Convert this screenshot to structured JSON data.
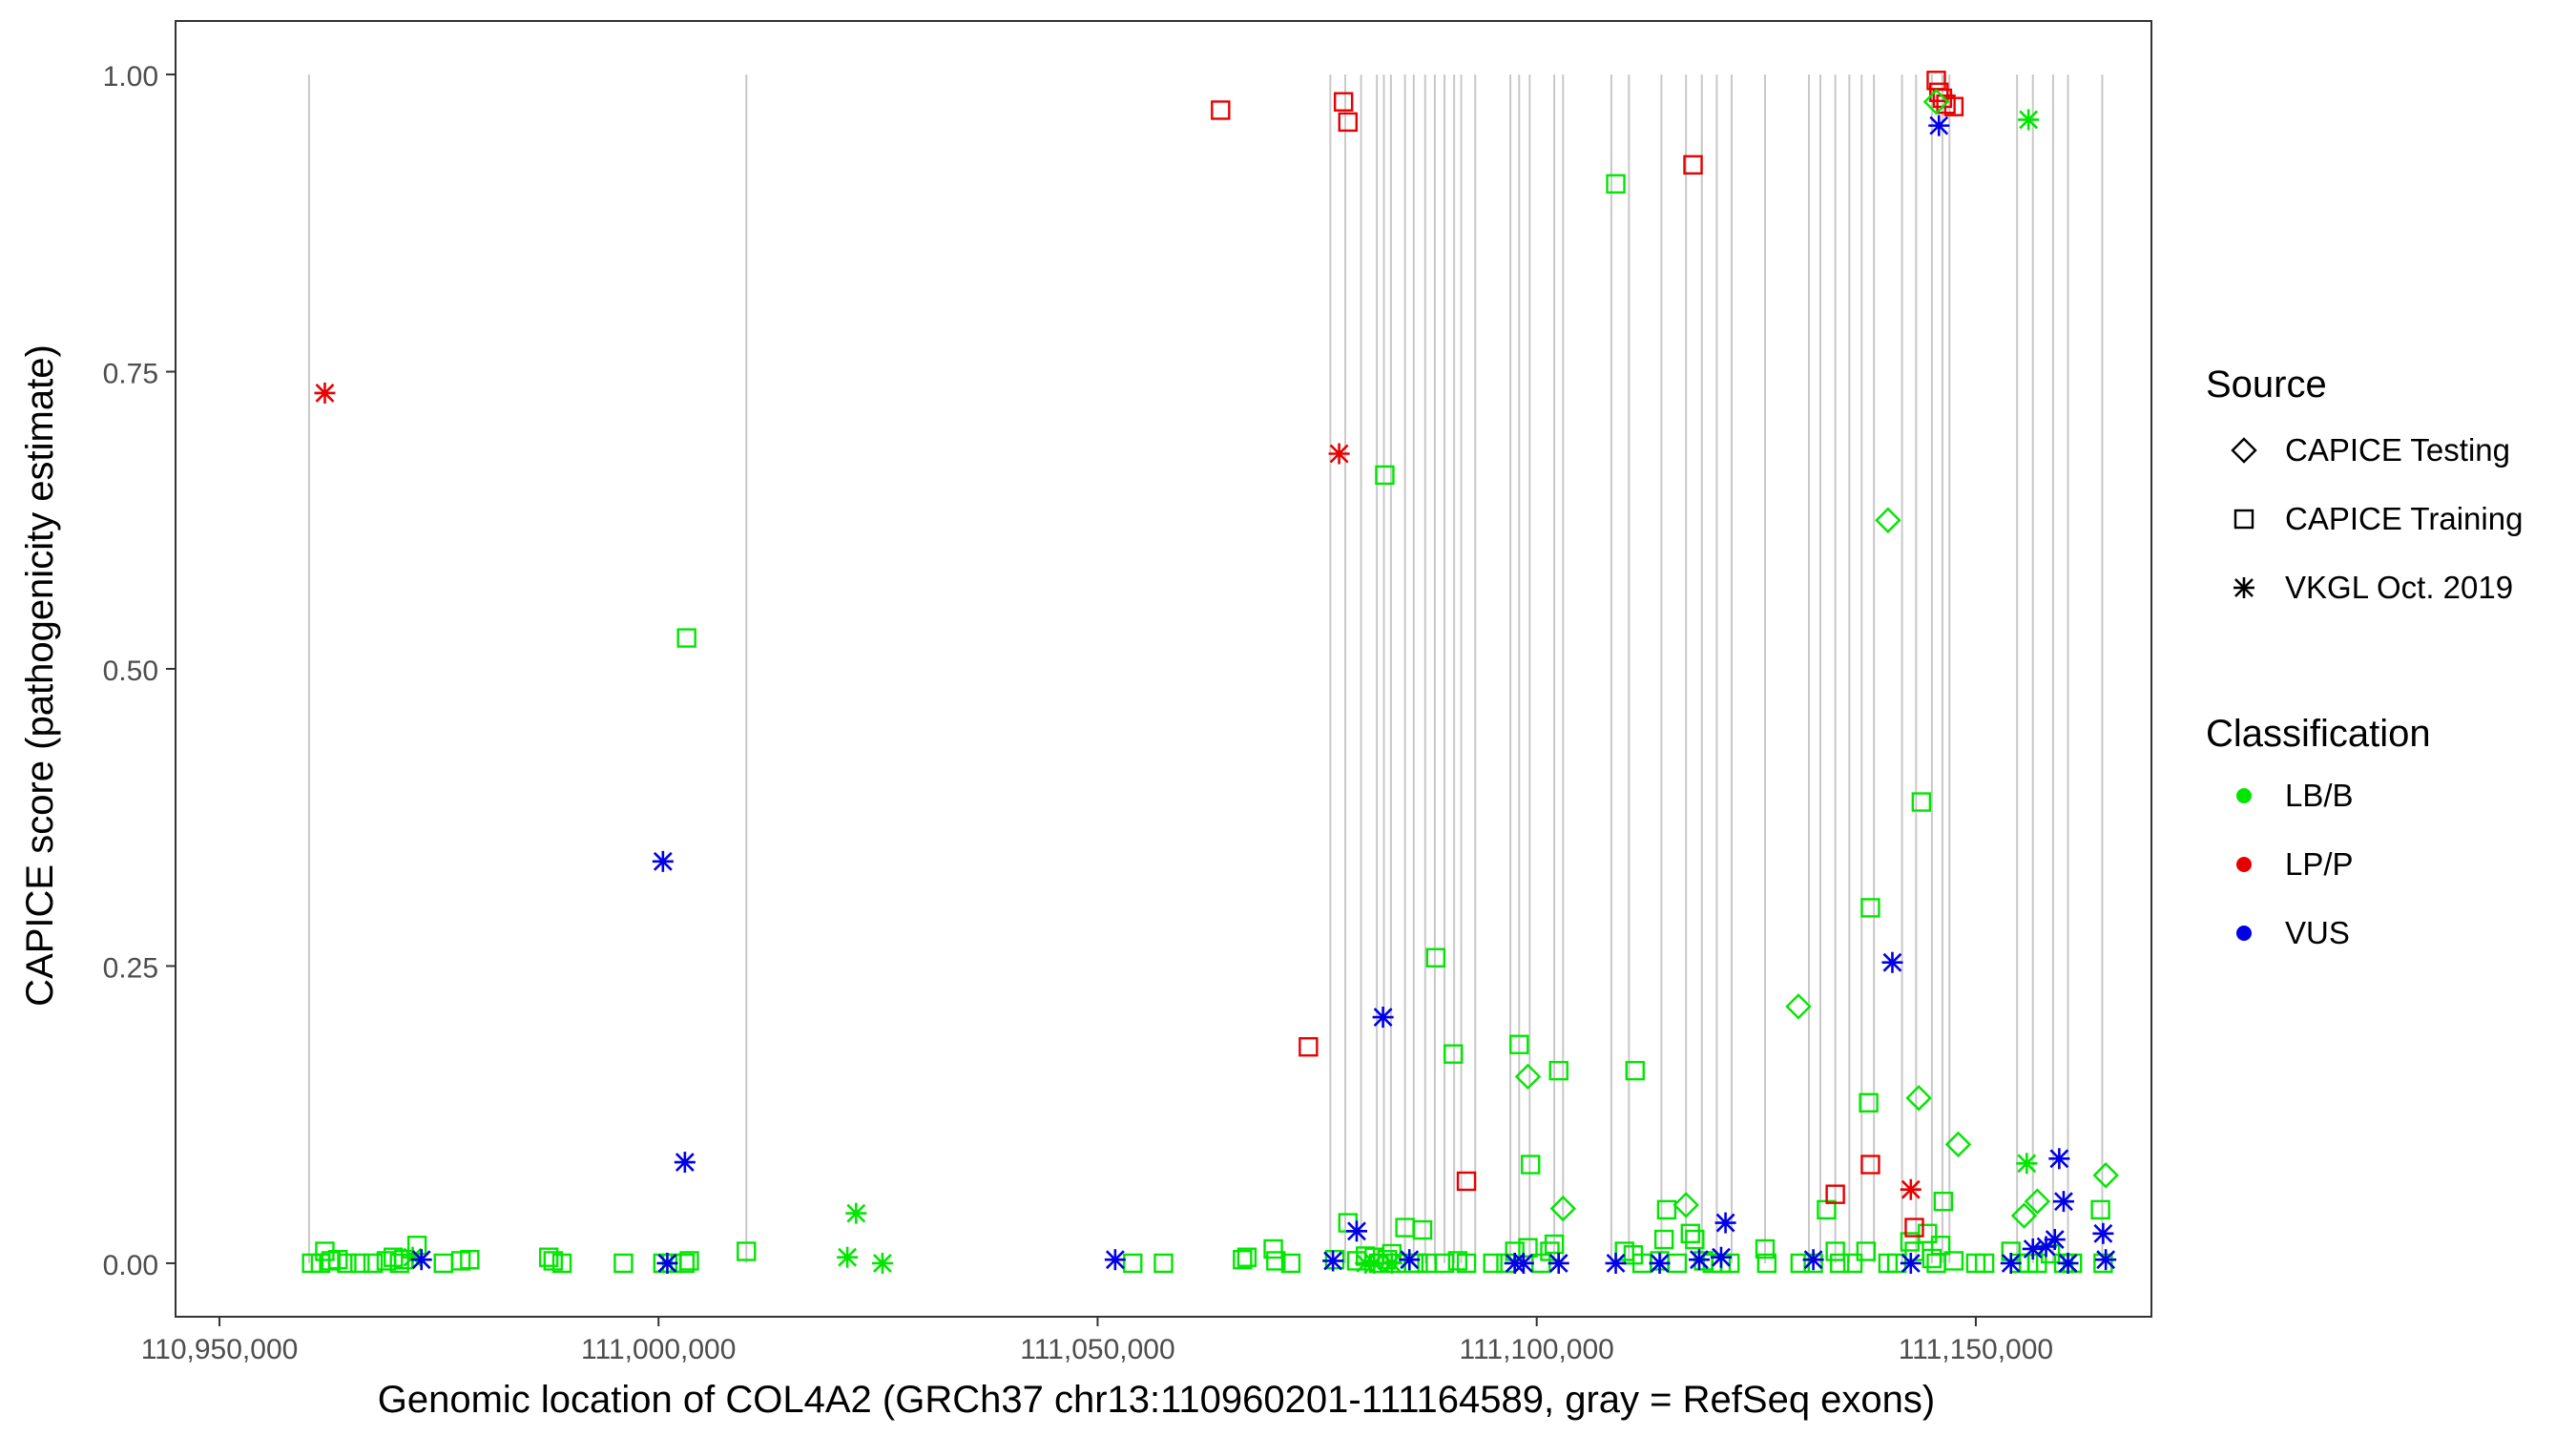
{
  "chart_data": {
    "type": "scatter",
    "title": "",
    "xlabel": "Genomic location of COL4A2 (GRCh37 chr13:110960201-111164589, gray = RefSeq exons)",
    "ylabel": "CAPICE score (pathogenicity estimate)",
    "xlim": [
      110945000,
      111170000
    ],
    "ylim": [
      -0.045,
      1.045
    ],
    "grid": false,
    "x_ticks": [
      110950000,
      111000000,
      111050000,
      111100000,
      111150000
    ],
    "x_tick_labels": [
      "110,950,000",
      "111,000,000",
      "111,050,000",
      "111,100,000",
      "111,150,000"
    ],
    "y_ticks": [
      0,
      0.25,
      0.5,
      0.75,
      1.0
    ],
    "y_tick_labels": [
      "0.00",
      "0.25",
      "0.50",
      "0.75",
      "1.00"
    ],
    "exon_lines_x": [
      110960201,
      111010000,
      111076500,
      111078200,
      111080000,
      111081800,
      111082600,
      111083400,
      111085000,
      111086000,
      111087300,
      111088400,
      111089500,
      111090600,
      111091400,
      111093000,
      111097000,
      111098000,
      111099200,
      111102000,
      111103000,
      111108500,
      111110500,
      111114200,
      111117000,
      111118800,
      111120500,
      111122200,
      111126000,
      111131000,
      111132300,
      111134000,
      111135600,
      111137000,
      111138400,
      111141600,
      111143200,
      111145000,
      111146200,
      111147000,
      111154700,
      111156500,
      111158800,
      111160500,
      111164400
    ],
    "legend": {
      "placement": "right",
      "shape_title": "Source",
      "shape_items": [
        {
          "label": "CAPICE Testing",
          "shape": "diamond"
        },
        {
          "label": "CAPICE Training",
          "shape": "square"
        },
        {
          "label": "VKGL Oct. 2019",
          "shape": "asterisk"
        }
      ],
      "color_title": "Classification",
      "color_items": [
        {
          "label": "LB/B",
          "color": "#00e600"
        },
        {
          "label": "LP/P",
          "color": "#e60000"
        },
        {
          "label": "VUS",
          "color": "#0000e6"
        }
      ]
    },
    "colors": {
      "LB/B": "#00e600",
      "LP/P": "#e60000",
      "VUS": "#0000e6",
      "exon": "#c8c8c8"
    },
    "series": [
      {
        "name": "CAPICE Training",
        "class": "LB/B",
        "points": [
          [
            110960500,
            0
          ],
          [
            110961500,
            0
          ],
          [
            110962000,
            0.01
          ],
          [
            110962700,
            0.002
          ],
          [
            110963500,
            0.003
          ],
          [
            110964500,
            0
          ],
          [
            110966000,
            0
          ],
          [
            110967500,
            0
          ],
          [
            110969000,
            0.002
          ],
          [
            110969800,
            0.005
          ],
          [
            110970500,
            0
          ],
          [
            110971000,
            0.003
          ],
          [
            110972500,
            0.015
          ],
          [
            110975500,
            0
          ],
          [
            110977500,
            0.002
          ],
          [
            110978500,
            0.003
          ],
          [
            110987500,
            0.005
          ],
          [
            110988000,
            0.002
          ],
          [
            110989000,
            0
          ],
          [
            110996000,
            0
          ],
          [
            111000500,
            0
          ],
          [
            111001500,
            0
          ],
          [
            111003000,
            0
          ],
          [
            111003500,
            0.002
          ],
          [
            111003200,
            0.526
          ],
          [
            111010000,
            0.01
          ],
          [
            111054000,
            0
          ],
          [
            111057500,
            0
          ],
          [
            111066500,
            0.003
          ],
          [
            111067000,
            0.005
          ],
          [
            111070000,
            0.012
          ],
          [
            111070300,
            0.002
          ],
          [
            111072000,
            0
          ],
          [
            111077000,
            0.003
          ],
          [
            111078500,
            0.034
          ],
          [
            111079500,
            0.002
          ],
          [
            111080500,
            0.006
          ],
          [
            111081500,
            0.005
          ],
          [
            111082000,
            0
          ],
          [
            111082700,
            0.663
          ],
          [
            111083000,
            0.003
          ],
          [
            111083500,
            0.008
          ],
          [
            111084000,
            0
          ],
          [
            111085000,
            0.03
          ],
          [
            111086000,
            0
          ],
          [
            111086500,
            0
          ],
          [
            111087000,
            0.028
          ],
          [
            111087500,
            0
          ],
          [
            111088500,
            0.257
          ],
          [
            111089500,
            0
          ],
          [
            111090500,
            0.176
          ],
          [
            111091000,
            0.002
          ],
          [
            111092000,
            0
          ],
          [
            111095000,
            0
          ],
          [
            111096500,
            0
          ],
          [
            111097500,
            0.01
          ],
          [
            111098000,
            0.184
          ],
          [
            111099000,
            0.013
          ],
          [
            111099300,
            0.083
          ],
          [
            111100500,
            0
          ],
          [
            111101500,
            0.01
          ],
          [
            111102000,
            0.016
          ],
          [
            111102500,
            0.162
          ],
          [
            111109000,
            0.908
          ],
          [
            111110000,
            0.01
          ],
          [
            111111000,
            0.007
          ],
          [
            111111200,
            0.162
          ],
          [
            111112000,
            0
          ],
          [
            111114000,
            0.002
          ],
          [
            111114500,
            0.02
          ],
          [
            111114800,
            0.045
          ],
          [
            111116000,
            0
          ],
          [
            111117500,
            0.025
          ],
          [
            111118000,
            0.02
          ],
          [
            111119000,
            0.002
          ],
          [
            111120000,
            0
          ],
          [
            111121000,
            0
          ],
          [
            111122000,
            0
          ],
          [
            111126000,
            0.012
          ],
          [
            111126200,
            0
          ],
          [
            111130000,
            0
          ],
          [
            111131500,
            0
          ],
          [
            111133000,
            0.045
          ],
          [
            111134000,
            0.01
          ],
          [
            111134500,
            0
          ],
          [
            111136000,
            0
          ],
          [
            111137500,
            0.01
          ],
          [
            111137800,
            0.135
          ],
          [
            111138000,
            0.299
          ],
          [
            111140000,
            0
          ],
          [
            111141000,
            0
          ],
          [
            111142500,
            0.018
          ],
          [
            111143000,
            0.01
          ],
          [
            111143800,
            0.388
          ],
          [
            111144500,
            0.025
          ],
          [
            111145000,
            0.004
          ],
          [
            111145500,
            0
          ],
          [
            111146000,
            0.015
          ],
          [
            111146300,
            0.052
          ],
          [
            111147500,
            0.002
          ],
          [
            111150000,
            0
          ],
          [
            111151000,
            0
          ],
          [
            111154000,
            0.01
          ],
          [
            111155000,
            0
          ],
          [
            111156000,
            0
          ],
          [
            111157000,
            0
          ],
          [
            111158500,
            0.008
          ],
          [
            111160000,
            0
          ],
          [
            111161000,
            0
          ],
          [
            111164200,
            0.045
          ],
          [
            111164500,
            0
          ]
        ]
      },
      {
        "name": "CAPICE Training",
        "class": "LP/P",
        "points": [
          [
            111064000,
            0.97
          ],
          [
            111078000,
            0.977
          ],
          [
            111078500,
            0.96
          ],
          [
            111074000,
            0.182
          ],
          [
            111092000,
            0.069
          ],
          [
            111117800,
            0.924
          ],
          [
            111134000,
            0.058
          ],
          [
            111138000,
            0.083
          ],
          [
            111143000,
            0.03
          ],
          [
            111145500,
            0.995
          ],
          [
            111145800,
            0.985
          ],
          [
            111146200,
            0.98
          ],
          [
            111146600,
            0.975
          ],
          [
            111147500,
            0.973
          ]
        ]
      },
      {
        "name": "CAPICE Testing",
        "class": "LB/B",
        "points": [
          [
            111099000,
            0.157
          ],
          [
            111103000,
            0.046
          ],
          [
            111117000,
            0.049
          ],
          [
            111129800,
            0.216
          ],
          [
            111140000,
            0.625
          ],
          [
            111143500,
            0.139
          ],
          [
            111145500,
            0.977
          ],
          [
            111148000,
            0.1
          ],
          [
            111155500,
            0.04
          ],
          [
            111157000,
            0.052
          ],
          [
            111164800,
            0.074
          ]
        ]
      },
      {
        "name": "VKGL Oct. 2019",
        "class": "LB/B",
        "points": [
          [
            110972000,
            0.005
          ],
          [
            111021500,
            0.005
          ],
          [
            111022500,
            0.042
          ],
          [
            111025500,
            0
          ],
          [
            111080500,
            0
          ],
          [
            111081500,
            0
          ],
          [
            111083500,
            0
          ],
          [
            111156000,
            0.962
          ],
          [
            111155800,
            0.084
          ]
        ]
      },
      {
        "name": "VKGL Oct. 2019",
        "class": "LP/P",
        "points": [
          [
            110962000,
            0.732
          ],
          [
            111077500,
            0.681
          ],
          [
            111142600,
            0.062
          ]
        ]
      },
      {
        "name": "VKGL Oct. 2019",
        "class": "VUS",
        "points": [
          [
            110973000,
            0.003
          ],
          [
            111000500,
            0.338
          ],
          [
            111001000,
            0
          ],
          [
            111003000,
            0.085
          ],
          [
            111052000,
            0.003
          ],
          [
            111076800,
            0.002
          ],
          [
            111079500,
            0.027
          ],
          [
            111082500,
            0.207
          ],
          [
            111085500,
            0.003
          ],
          [
            111097500,
            0
          ],
          [
            111098500,
            0
          ],
          [
            111102500,
            0
          ],
          [
            111109000,
            0
          ],
          [
            111114000,
            0
          ],
          [
            111118500,
            0.003
          ],
          [
            111121000,
            0.005
          ],
          [
            111121500,
            0.034
          ],
          [
            111131500,
            0.003
          ],
          [
            111140500,
            0.253
          ],
          [
            111142600,
            0
          ],
          [
            111145800,
            0.957
          ],
          [
            111154000,
            0
          ],
          [
            111156500,
            0.012
          ],
          [
            111158000,
            0.014
          ],
          [
            111159000,
            0.02
          ],
          [
            111159500,
            0.088
          ],
          [
            111160000,
            0.052
          ],
          [
            111160500,
            0
          ],
          [
            111164500,
            0.025
          ],
          [
            111164800,
            0.003
          ]
        ]
      }
    ]
  }
}
